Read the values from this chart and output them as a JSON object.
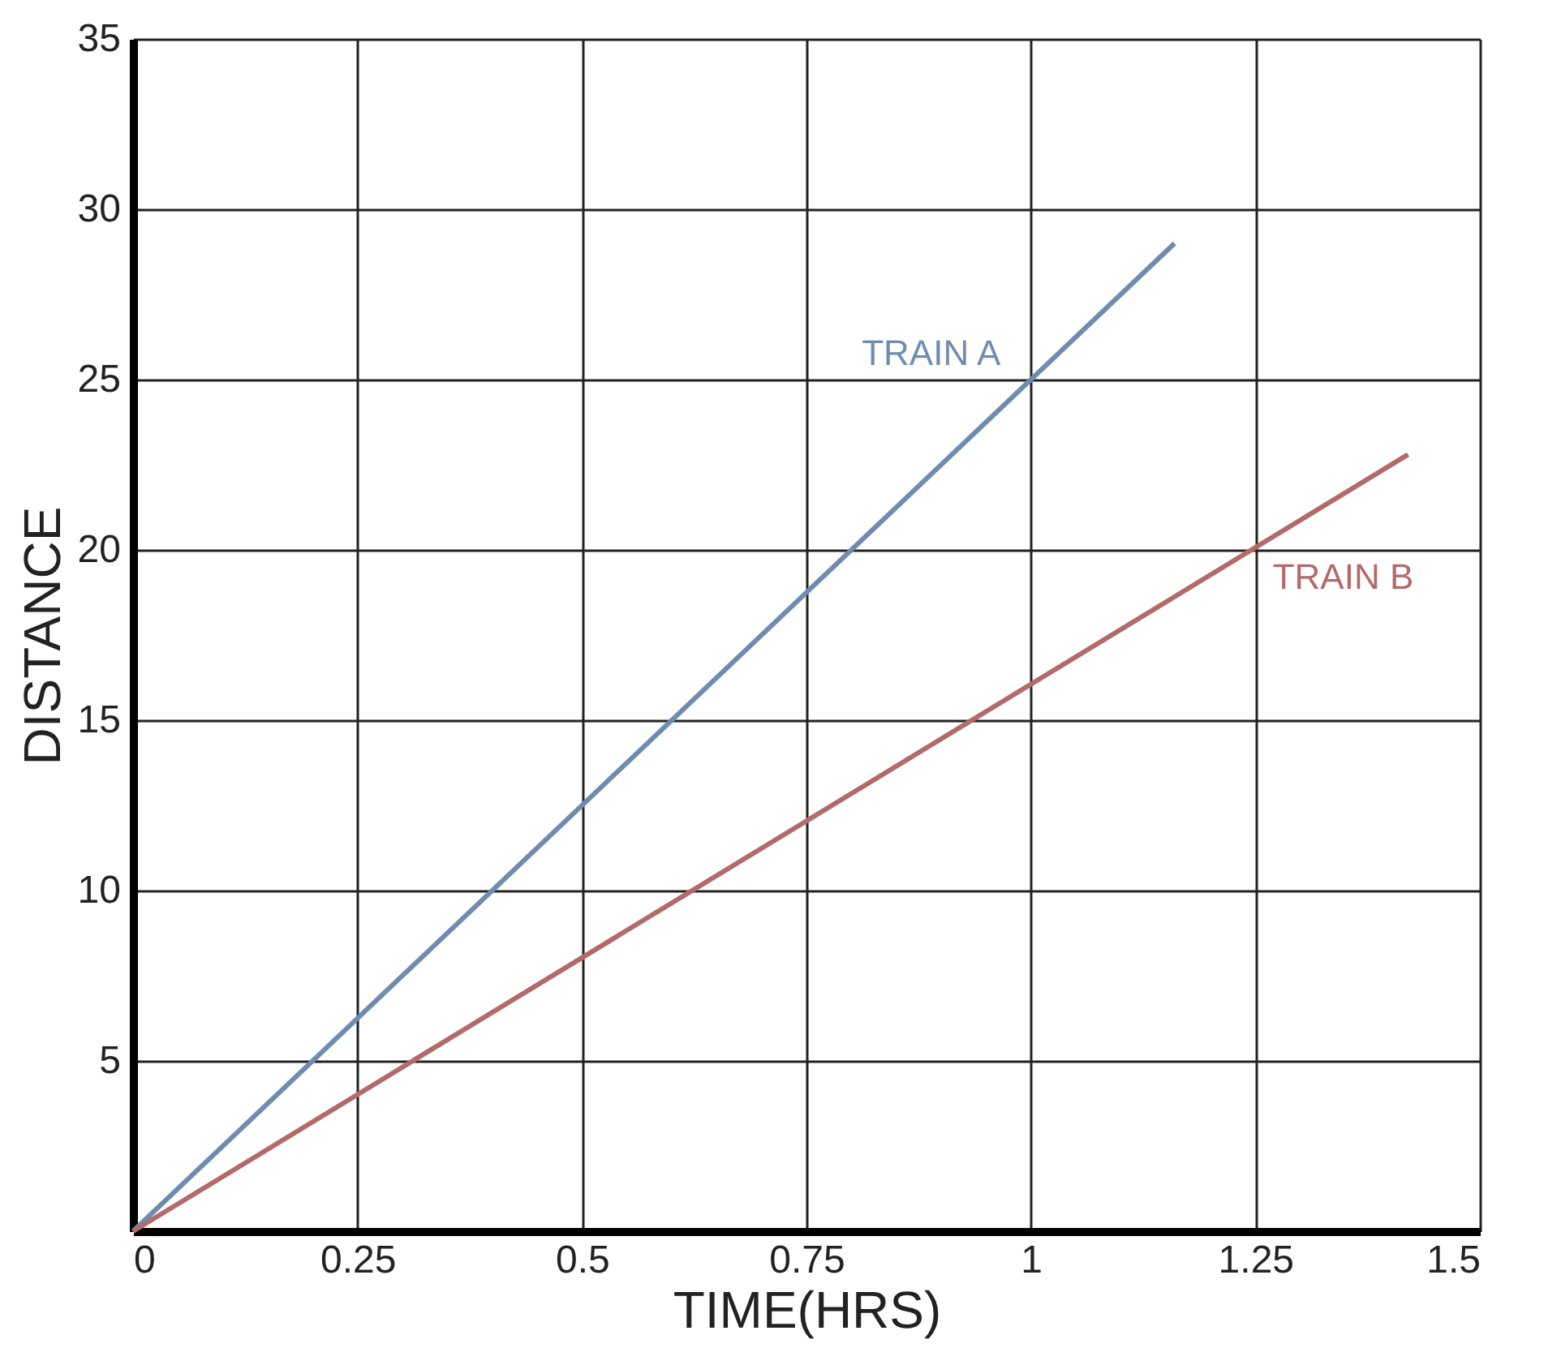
{
  "chart_data": {
    "type": "line",
    "xlabel": "TIME(HRS)",
    "ylabel": "DISTANCE",
    "xlim": [
      0,
      1.5
    ],
    "ylim": [
      0,
      35
    ],
    "xticks": [
      0,
      0.25,
      0.5,
      0.75,
      1,
      1.25,
      1.5
    ],
    "yticks": [
      5,
      10,
      15,
      20,
      25,
      30,
      35
    ],
    "grid": true,
    "legend": false,
    "series": [
      {
        "name": "TRAIN A",
        "color": "#6f8cb0",
        "x": [
          0,
          1.16
        ],
        "values": [
          0,
          29
        ]
      },
      {
        "name": "TRAIN B",
        "color": "#b36a6a",
        "x": [
          0,
          1.42
        ],
        "values": [
          0,
          22.8
        ]
      }
    ]
  }
}
